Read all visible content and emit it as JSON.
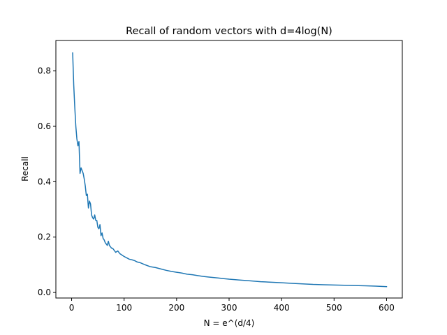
{
  "chart_data": {
    "type": "line",
    "title": "Recall of random vectors with d=4log(N)",
    "xlabel": "N = e^(d/4)",
    "ylabel": "Recall",
    "xlim": [
      -30,
      630
    ],
    "ylim": [
      -0.02,
      0.91
    ],
    "x_ticks": [
      0,
      100,
      200,
      300,
      400,
      500,
      600
    ],
    "y_ticks": [
      0.0,
      0.2,
      0.4,
      0.6,
      0.8
    ],
    "x_tick_labels": [
      "0",
      "100",
      "200",
      "300",
      "400",
      "500",
      "600"
    ],
    "y_tick_labels": [
      "0.0",
      "0.2",
      "0.4",
      "0.6",
      "0.8"
    ],
    "grid": false,
    "legend": "none",
    "series": [
      {
        "color": "#1f77b4",
        "x": [
          2,
          4,
          6,
          8,
          10,
          12,
          14,
          16,
          18,
          20,
          22,
          24,
          26,
          28,
          30,
          32,
          34,
          36,
          38,
          40,
          42,
          44,
          46,
          48,
          50,
          52,
          54,
          56,
          58,
          60,
          62,
          64,
          66,
          68,
          70,
          72,
          74,
          76,
          78,
          80,
          84,
          88,
          92,
          96,
          100,
          105,
          110,
          115,
          120,
          125,
          130,
          140,
          150,
          160,
          170,
          180,
          190,
          200,
          210,
          220,
          230,
          240,
          250,
          260,
          270,
          280,
          290,
          300,
          320,
          340,
          360,
          380,
          400,
          420,
          440,
          460,
          480,
          500,
          520,
          540,
          560,
          580,
          600
        ],
        "y": [
          0.865,
          0.75,
          0.67,
          0.6,
          0.555,
          0.53,
          0.545,
          0.43,
          0.45,
          0.44,
          0.43,
          0.41,
          0.385,
          0.35,
          0.355,
          0.305,
          0.33,
          0.32,
          0.28,
          0.27,
          0.265,
          0.28,
          0.26,
          0.26,
          0.235,
          0.23,
          0.245,
          0.205,
          0.215,
          0.195,
          0.19,
          0.18,
          0.175,
          0.17,
          0.185,
          0.17,
          0.165,
          0.16,
          0.16,
          0.155,
          0.145,
          0.15,
          0.14,
          0.135,
          0.13,
          0.125,
          0.12,
          0.118,
          0.115,
          0.11,
          0.108,
          0.1,
          0.093,
          0.09,
          0.085,
          0.08,
          0.076,
          0.073,
          0.07,
          0.066,
          0.064,
          0.061,
          0.058,
          0.056,
          0.054,
          0.052,
          0.05,
          0.048,
          0.045,
          0.042,
          0.039,
          0.037,
          0.035,
          0.033,
          0.031,
          0.029,
          0.028,
          0.027,
          0.026,
          0.025,
          0.024,
          0.023,
          0.021
        ]
      }
    ]
  }
}
